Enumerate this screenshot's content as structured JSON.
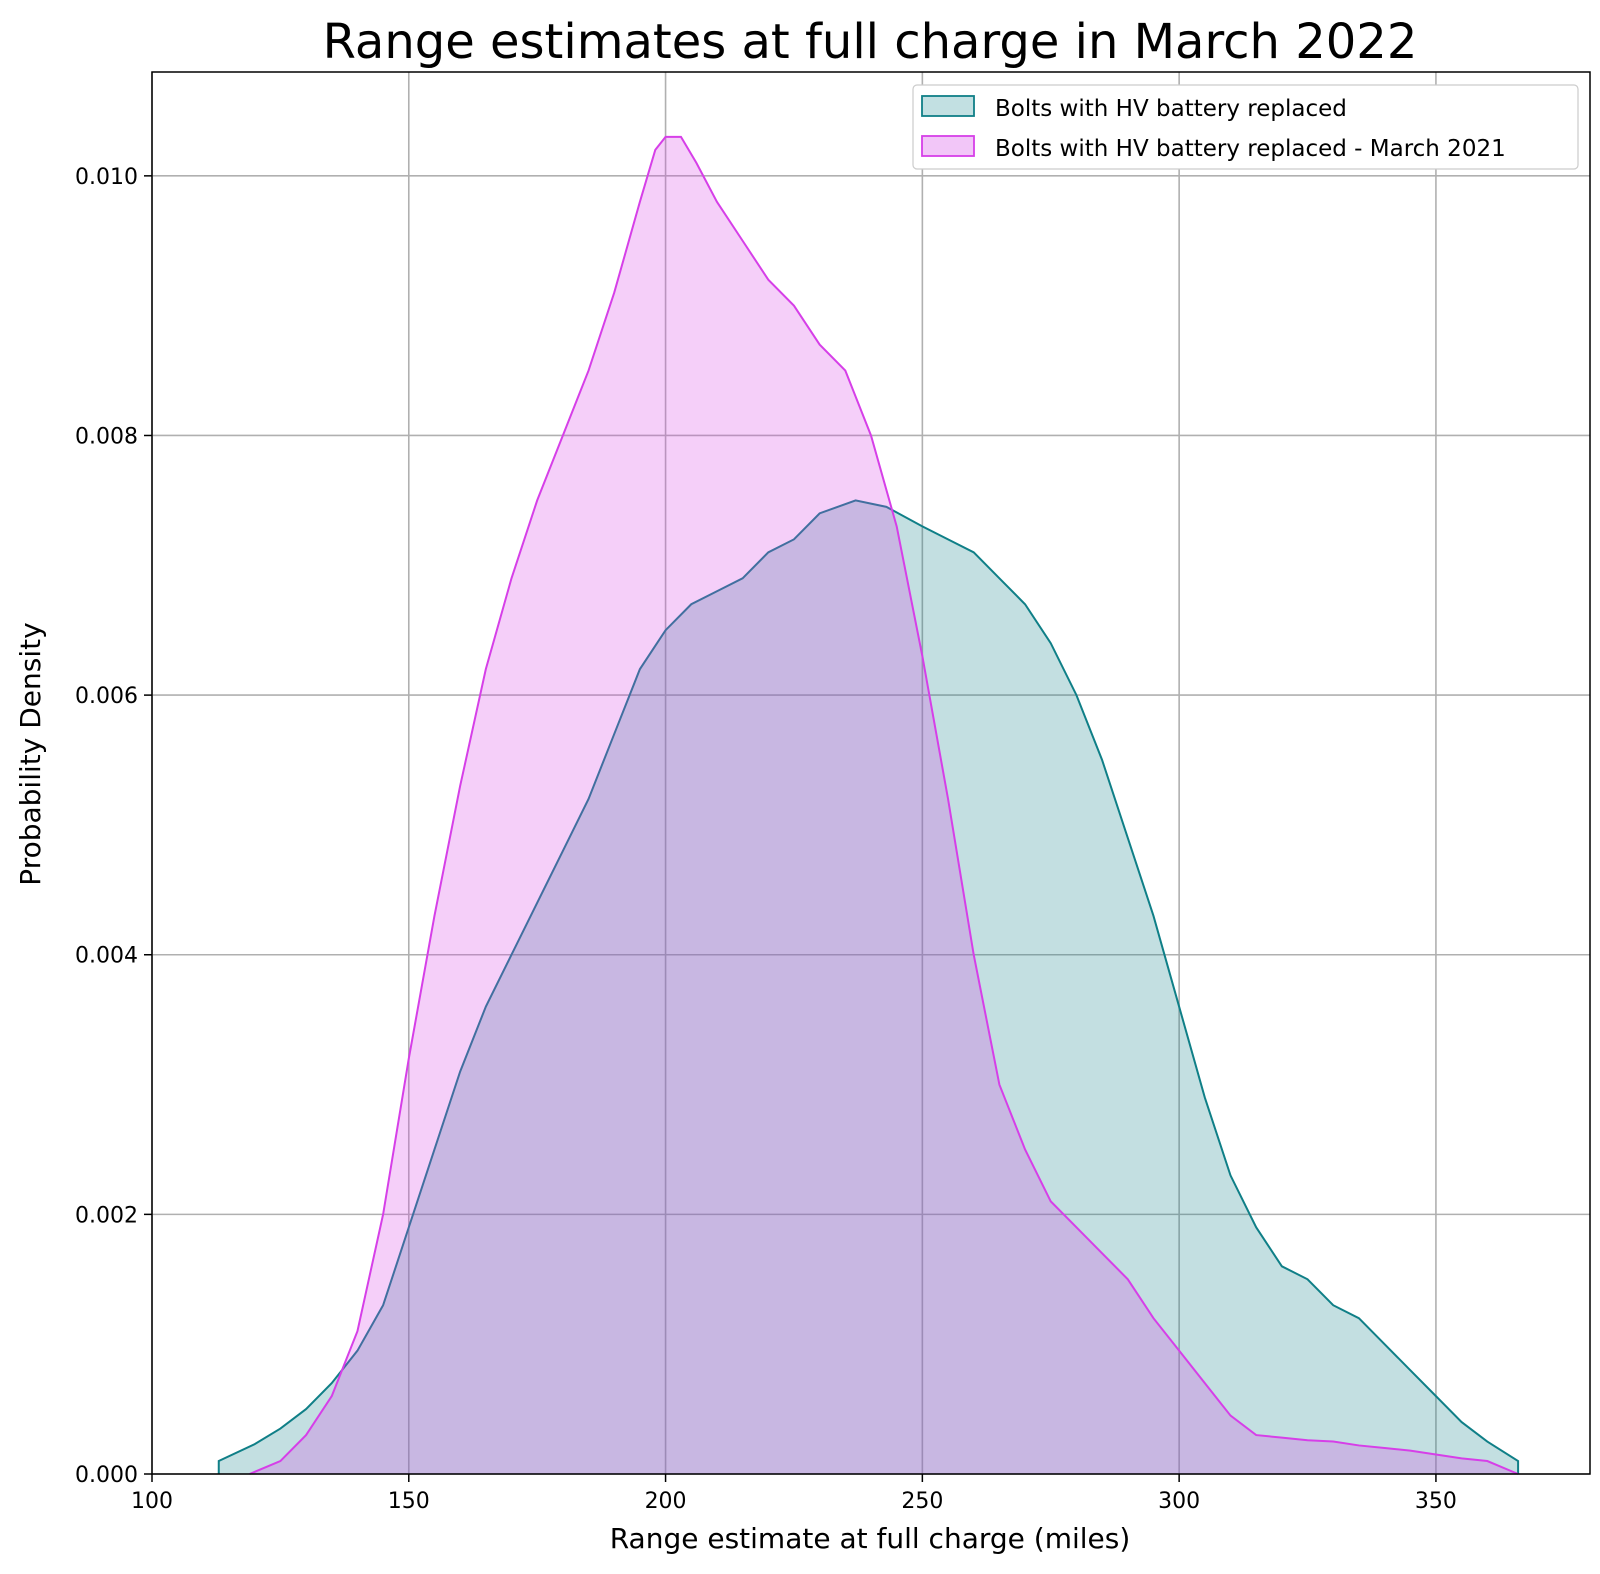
{
  "chart_data": {
    "type": "area",
    "title": "Range estimates at full charge in March 2022",
    "xlabel": "Range estimate at full charge (miles)",
    "ylabel": "Probability Density",
    "xlim": [
      100,
      380
    ],
    "ylim": [
      0,
      0.0108
    ],
    "x_ticks": [
      100,
      150,
      200,
      250,
      300,
      350
    ],
    "y_ticks": [
      0.0,
      0.002,
      0.004,
      0.006,
      0.008,
      0.01
    ],
    "x_tick_labels": [
      "100",
      "150",
      "200",
      "250",
      "300",
      "350"
    ],
    "y_tick_labels": [
      "0.000",
      "0.002",
      "0.004",
      "0.006",
      "0.008",
      "0.010"
    ],
    "grid": true,
    "legend_position": "upper right",
    "series": [
      {
        "name": "Bolts with HV battery replaced",
        "color": "#0f7f87",
        "fill": "#c2e0e2",
        "points": [
          [
            113,
            0.0001
          ],
          [
            120,
            0.00023
          ],
          [
            125,
            0.00035
          ],
          [
            130,
            0.0005
          ],
          [
            135,
            0.0007
          ],
          [
            140,
            0.00095
          ],
          [
            145,
            0.0013
          ],
          [
            150,
            0.0019
          ],
          [
            155,
            0.0025
          ],
          [
            160,
            0.0031
          ],
          [
            165,
            0.0036
          ],
          [
            170,
            0.004
          ],
          [
            175,
            0.0044
          ],
          [
            180,
            0.0048
          ],
          [
            185,
            0.0052
          ],
          [
            190,
            0.0057
          ],
          [
            195,
            0.0062
          ],
          [
            200,
            0.0065
          ],
          [
            205,
            0.0067
          ],
          [
            210,
            0.0068
          ],
          [
            215,
            0.0069
          ],
          [
            220,
            0.0071
          ],
          [
            225,
            0.0072
          ],
          [
            230,
            0.0074
          ],
          [
            237,
            0.0075
          ],
          [
            243,
            0.00745
          ],
          [
            250,
            0.0073
          ],
          [
            255,
            0.0072
          ],
          [
            260,
            0.0071
          ],
          [
            265,
            0.0069
          ],
          [
            270,
            0.0067
          ],
          [
            275,
            0.0064
          ],
          [
            280,
            0.006
          ],
          [
            285,
            0.0055
          ],
          [
            290,
            0.0049
          ],
          [
            295,
            0.0043
          ],
          [
            300,
            0.0036
          ],
          [
            305,
            0.0029
          ],
          [
            310,
            0.0023
          ],
          [
            315,
            0.0019
          ],
          [
            320,
            0.0016
          ],
          [
            325,
            0.0015
          ],
          [
            330,
            0.0013
          ],
          [
            335,
            0.0012
          ],
          [
            340,
            0.001
          ],
          [
            345,
            0.0008
          ],
          [
            350,
            0.0006
          ],
          [
            355,
            0.0004
          ],
          [
            360,
            0.00025
          ],
          [
            366,
            0.0001
          ]
        ]
      },
      {
        "name": "Bolts with HV battery replaced - March 2021",
        "color": "#d63fe8",
        "fill": "#f2c6f8",
        "points": [
          [
            119,
            0.0
          ],
          [
            125,
            0.0001
          ],
          [
            130,
            0.0003
          ],
          [
            135,
            0.0006
          ],
          [
            140,
            0.0011
          ],
          [
            145,
            0.002
          ],
          [
            150,
            0.0032
          ],
          [
            155,
            0.0043
          ],
          [
            160,
            0.0053
          ],
          [
            165,
            0.0062
          ],
          [
            170,
            0.0069
          ],
          [
            175,
            0.0075
          ],
          [
            180,
            0.008
          ],
          [
            185,
            0.0085
          ],
          [
            190,
            0.0091
          ],
          [
            195,
            0.0098
          ],
          [
            198,
            0.0102
          ],
          [
            200,
            0.0103
          ],
          [
            203,
            0.0103
          ],
          [
            206,
            0.0101
          ],
          [
            210,
            0.0098
          ],
          [
            215,
            0.0095
          ],
          [
            220,
            0.0092
          ],
          [
            225,
            0.009
          ],
          [
            230,
            0.0087
          ],
          [
            235,
            0.0085
          ],
          [
            240,
            0.008
          ],
          [
            245,
            0.0073
          ],
          [
            250,
            0.0063
          ],
          [
            255,
            0.0052
          ],
          [
            260,
            0.004
          ],
          [
            265,
            0.003
          ],
          [
            270,
            0.0025
          ],
          [
            275,
            0.0021
          ],
          [
            280,
            0.0019
          ],
          [
            285,
            0.0017
          ],
          [
            290,
            0.0015
          ],
          [
            295,
            0.0012
          ],
          [
            300,
            0.00095
          ],
          [
            305,
            0.0007
          ],
          [
            310,
            0.00045
          ],
          [
            315,
            0.0003
          ],
          [
            320,
            0.00028
          ],
          [
            325,
            0.00026
          ],
          [
            330,
            0.00025
          ],
          [
            335,
            0.00022
          ],
          [
            340,
            0.0002
          ],
          [
            345,
            0.00018
          ],
          [
            350,
            0.00015
          ],
          [
            355,
            0.00012
          ],
          [
            360,
            0.0001
          ],
          [
            366,
            0.0
          ]
        ]
      }
    ]
  }
}
